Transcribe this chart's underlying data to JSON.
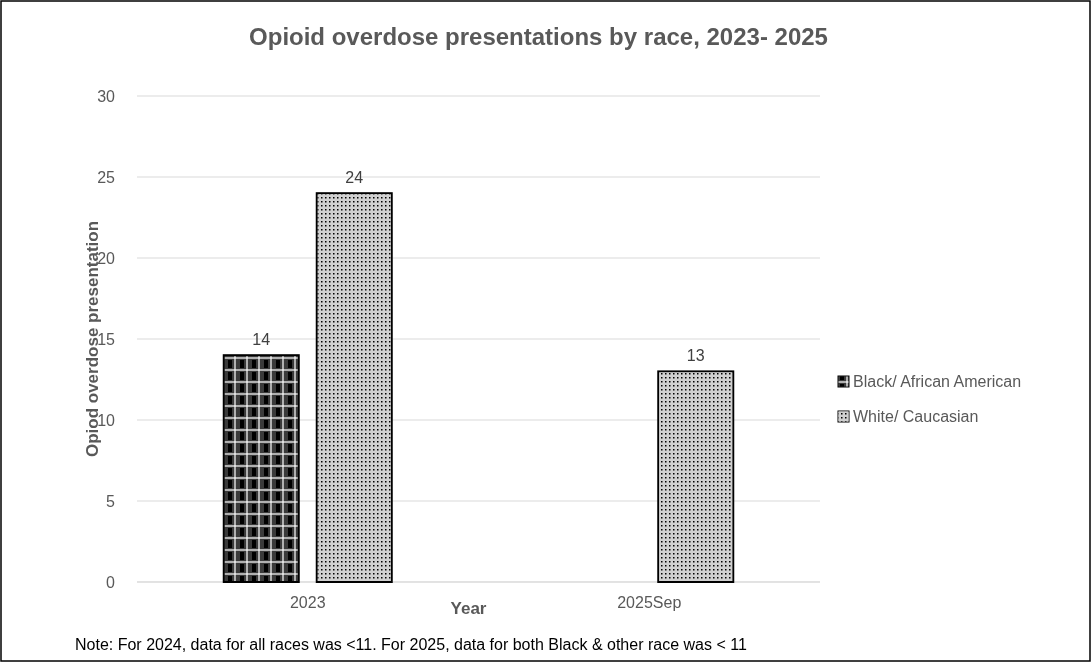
{
  "chart_data": {
    "type": "bar",
    "title": "Opioid overdose presentations  by race, 2023- 2025",
    "xlabel": "Year",
    "ylabel": "Opiod overdose presentation",
    "categories": [
      "2023",
      "2025Sep"
    ],
    "series": [
      {
        "name": "Black/ African American",
        "color": "#3a3a3a",
        "values": [
          14,
          null
        ]
      },
      {
        "name": "White/ Caucasian",
        "color": "#d0d0d0",
        "values": [
          24,
          13
        ]
      }
    ],
    "ylim": [
      0,
      30
    ],
    "yticks": [
      0,
      5,
      10,
      15,
      20,
      25,
      30
    ],
    "grid": "y",
    "legend": "right",
    "data_labels": true,
    "annotations": [
      "Note: For 2024, data for all races was <11. For 2025, data for both Black & other race was < 11"
    ]
  }
}
